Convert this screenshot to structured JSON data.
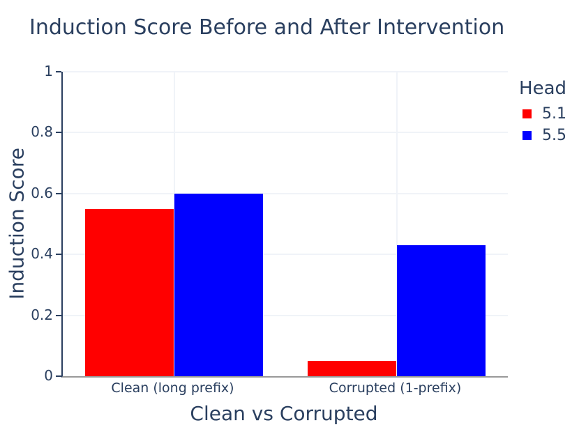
{
  "chart_data": {
    "type": "bar",
    "title": "Induction Score Before and After Intervention",
    "xlabel": "Clean vs Corrupted",
    "ylabel": "Induction Score",
    "legend_title": "Head",
    "legend_position": "right",
    "categories": [
      "Clean (long prefix)",
      "Corrupted (1-prefix)"
    ],
    "series": [
      {
        "name": "5.1",
        "color": "#ff0000",
        "values": [
          0.55,
          0.05
        ]
      },
      {
        "name": "5.5",
        "color": "#0000ff",
        "values": [
          0.6,
          0.43
        ]
      }
    ],
    "ylim": [
      0,
      1
    ],
    "yticks": [
      0,
      0.2,
      0.4,
      0.6,
      0.8,
      1
    ],
    "ytick_labels": [
      "0",
      "0.2",
      "0.4",
      "0.6",
      "0.8",
      "1"
    ],
    "grid": true
  },
  "colors": {
    "text": "#2a3f5f",
    "grid": "#f0f3f8",
    "y_axis_line": "#2a3f5f",
    "x_axis_line": "#999999",
    "background": "#ffffff"
  }
}
